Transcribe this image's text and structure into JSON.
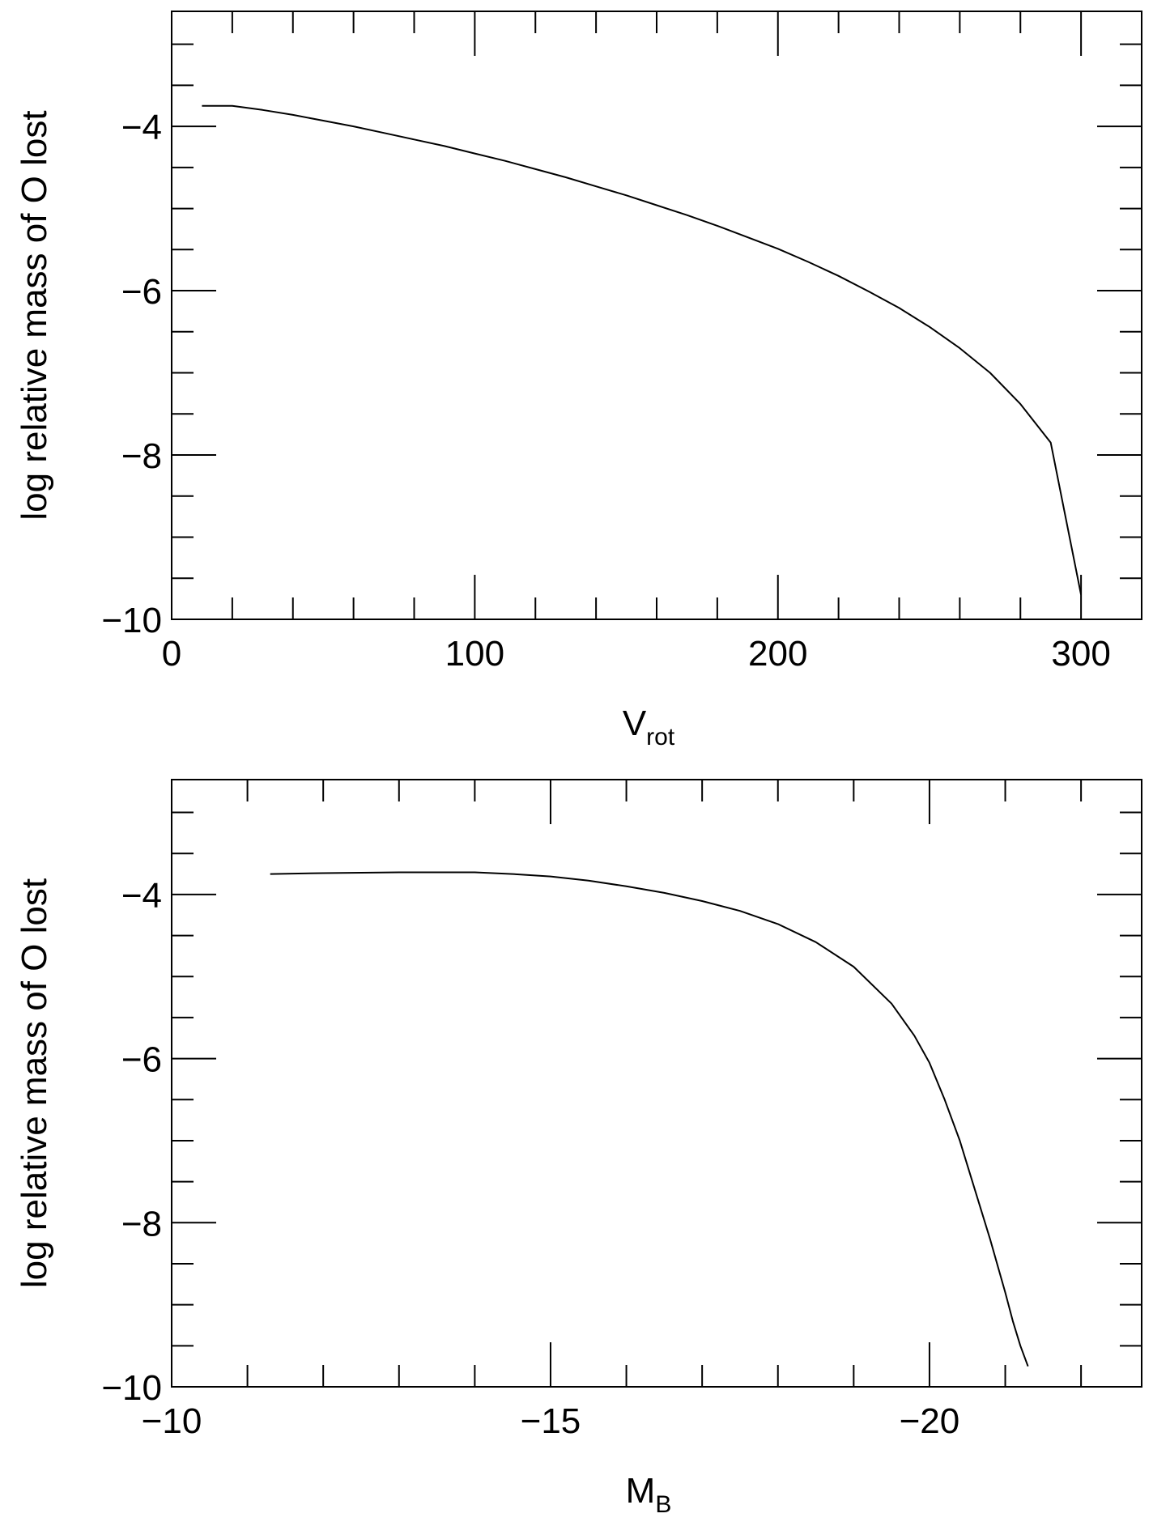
{
  "chart_data": [
    {
      "type": "line",
      "xlabel": "V",
      "xlabel_sub": "rot",
      "ylabel": "log relative mass of O lost",
      "xlim": [
        0,
        320
      ],
      "ylim": [
        -10,
        -2.6
      ],
      "x_ticks": [
        0,
        100,
        200,
        300
      ],
      "x_tick_labels": [
        "0",
        "100",
        "200",
        "300"
      ],
      "x_minor_step": 20,
      "y_ticks": [
        -10,
        -8,
        -6,
        -4
      ],
      "y_tick_labels": [
        "−10",
        "−8",
        "−6",
        "−4"
      ],
      "y_minor_step": 0.5,
      "grid": false,
      "series": [
        {
          "x": [
            10,
            20,
            30,
            40,
            50,
            60,
            70,
            80,
            90,
            100,
            110,
            120,
            130,
            140,
            150,
            160,
            170,
            180,
            190,
            200,
            210,
            220,
            230,
            240,
            250,
            260,
            270,
            280,
            290,
            300
          ],
          "y": [
            -3.75,
            -3.75,
            -3.8,
            -3.86,
            -3.93,
            -4.0,
            -4.08,
            -4.16,
            -4.24,
            -4.33,
            -4.42,
            -4.52,
            -4.62,
            -4.73,
            -4.84,
            -4.96,
            -5.08,
            -5.21,
            -5.35,
            -5.49,
            -5.65,
            -5.82,
            -6.01,
            -6.21,
            -6.44,
            -6.7,
            -7.0,
            -7.38,
            -7.85,
            -9.7
          ]
        }
      ]
    },
    {
      "type": "line",
      "xlabel": "M",
      "xlabel_sub": "B",
      "ylabel": "log relative mass of O lost",
      "xlim": [
        -10,
        -22.8
      ],
      "ylim": [
        -10,
        -2.6
      ],
      "x_ticks": [
        -10,
        -15,
        -20
      ],
      "x_tick_labels": [
        "−10",
        "−15",
        "−20"
      ],
      "x_minor_step": 1,
      "y_ticks": [
        -10,
        -8,
        -6,
        -4
      ],
      "y_tick_labels": [
        "−10",
        "−8",
        "−6",
        "−4"
      ],
      "y_minor_step": 0.5,
      "grid": false,
      "series": [
        {
          "x": [
            -11.3,
            -12,
            -13,
            -14,
            -14.5,
            -15,
            -15.5,
            -16,
            -16.5,
            -17,
            -17.5,
            -18,
            -18.5,
            -19,
            -19.5,
            -19.8,
            -20,
            -20.2,
            -20.4,
            -20.6,
            -20.8,
            -21,
            -21.1,
            -21.2,
            -21.3
          ],
          "y": [
            -3.75,
            -3.74,
            -3.73,
            -3.73,
            -3.75,
            -3.78,
            -3.83,
            -3.9,
            -3.98,
            -4.08,
            -4.2,
            -4.36,
            -4.58,
            -4.88,
            -5.33,
            -5.72,
            -6.05,
            -6.5,
            -7.0,
            -7.6,
            -8.2,
            -8.85,
            -9.2,
            -9.5,
            -9.75
          ]
        }
      ]
    }
  ]
}
